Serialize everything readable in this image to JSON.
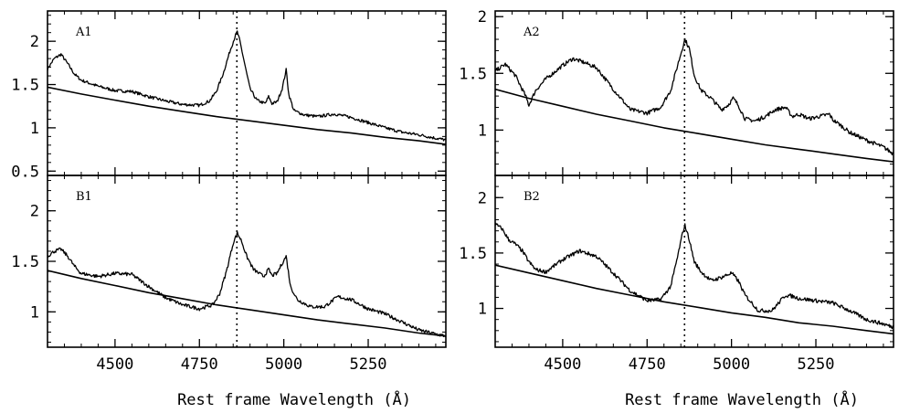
{
  "figure": {
    "xlabel": "Rest frame Wavelength (Å)",
    "marker_wavelength": 4861
  },
  "chart_data": [
    {
      "type": "line",
      "panel": "A1",
      "xlim": [
        4300,
        5480
      ],
      "ylim": [
        0.45,
        2.35
      ],
      "yticks": [
        0.5,
        1,
        1.5,
        2
      ],
      "ytick_labels": [
        "0.5",
        "1",
        "1.5",
        "2"
      ],
      "xticks": [
        4500,
        4750,
        5000,
        5250
      ],
      "xtick_labels": [
        "",
        "",
        "",
        ""
      ],
      "series": [
        {
          "role": "spectrum",
          "x": [
            4300,
            4320,
            4340,
            4360,
            4380,
            4400,
            4450,
            4500,
            4550,
            4600,
            4650,
            4700,
            4750,
            4780,
            4800,
            4820,
            4840,
            4855,
            4862,
            4870,
            4885,
            4900,
            4920,
            4945,
            4955,
            4965,
            4980,
            4995,
            5007,
            5015,
            5030,
            5060,
            5100,
            5150,
            5200,
            5250,
            5300,
            5350,
            5400,
            5450,
            5480
          ],
          "y": [
            1.68,
            1.8,
            1.85,
            1.74,
            1.62,
            1.55,
            1.48,
            1.43,
            1.42,
            1.36,
            1.31,
            1.27,
            1.26,
            1.31,
            1.42,
            1.62,
            1.88,
            2.05,
            2.11,
            2.0,
            1.72,
            1.45,
            1.32,
            1.28,
            1.36,
            1.28,
            1.3,
            1.45,
            1.67,
            1.38,
            1.2,
            1.15,
            1.13,
            1.16,
            1.12,
            1.06,
            1.0,
            0.95,
            0.92,
            0.88,
            0.86
          ]
        },
        {
          "role": "continuum",
          "x": [
            4300,
            4400,
            4500,
            4600,
            4700,
            4800,
            4900,
            5000,
            5100,
            5200,
            5300,
            5400,
            5480
          ],
          "y": [
            1.47,
            1.39,
            1.32,
            1.25,
            1.19,
            1.13,
            1.08,
            1.03,
            0.98,
            0.94,
            0.89,
            0.85,
            0.81
          ]
        }
      ]
    },
    {
      "type": "line",
      "panel": "A2",
      "xlim": [
        4300,
        5480
      ],
      "ylim": [
        0.6,
        2.05
      ],
      "yticks": [
        1,
        1.5,
        2
      ],
      "ytick_labels": [
        "1",
        "1.5",
        "2"
      ],
      "xticks": [
        4500,
        4750,
        5000,
        5250
      ],
      "xtick_labels": [
        "",
        "",
        "",
        ""
      ],
      "series": [
        {
          "role": "spectrum",
          "x": [
            4300,
            4330,
            4360,
            4390,
            4400,
            4420,
            4450,
            4500,
            4530,
            4560,
            4600,
            4650,
            4700,
            4750,
            4790,
            4820,
            4845,
            4862,
            4875,
            4890,
            4910,
            4940,
            4970,
            4990,
            5005,
            5020,
            5040,
            5070,
            5100,
            5130,
            5160,
            5180,
            5200,
            5230,
            5260,
            5290,
            5300,
            5320,
            5350,
            5400,
            5450,
            5480
          ],
          "y": [
            1.52,
            1.58,
            1.48,
            1.3,
            1.22,
            1.35,
            1.45,
            1.57,
            1.63,
            1.6,
            1.55,
            1.36,
            1.18,
            1.15,
            1.2,
            1.35,
            1.62,
            1.8,
            1.72,
            1.48,
            1.35,
            1.28,
            1.18,
            1.22,
            1.28,
            1.22,
            1.1,
            1.08,
            1.12,
            1.18,
            1.2,
            1.12,
            1.14,
            1.1,
            1.12,
            1.14,
            1.09,
            1.05,
            0.98,
            0.91,
            0.85,
            0.79
          ]
        },
        {
          "role": "continuum",
          "x": [
            4300,
            4400,
            4500,
            4600,
            4700,
            4800,
            4900,
            5000,
            5100,
            5200,
            5300,
            5400,
            5480
          ],
          "y": [
            1.36,
            1.28,
            1.21,
            1.14,
            1.08,
            1.02,
            0.97,
            0.92,
            0.87,
            0.83,
            0.79,
            0.75,
            0.72
          ]
        }
      ]
    },
    {
      "type": "line",
      "panel": "B1",
      "xlim": [
        4300,
        5480
      ],
      "ylim": [
        0.65,
        2.35
      ],
      "yticks": [
        1,
        1.5,
        2
      ],
      "ytick_labels": [
        "1",
        "1.5",
        "2"
      ],
      "xticks": [
        4500,
        4750,
        5000,
        5250
      ],
      "xtick_labels": [
        "4500",
        "4750",
        "5000",
        "5250"
      ],
      "series": [
        {
          "role": "spectrum",
          "x": [
            4300,
            4320,
            4340,
            4360,
            4380,
            4400,
            4450,
            4500,
            4550,
            4600,
            4650,
            4700,
            4750,
            4790,
            4810,
            4830,
            4850,
            4862,
            4875,
            4890,
            4910,
            4940,
            4955,
            4965,
            4980,
            4995,
            5007,
            5020,
            5040,
            5080,
            5120,
            5160,
            5200,
            5250,
            5300,
            5350,
            5400,
            5450,
            5480
          ],
          "y": [
            1.55,
            1.6,
            1.62,
            1.55,
            1.45,
            1.38,
            1.35,
            1.38,
            1.37,
            1.25,
            1.14,
            1.07,
            1.03,
            1.07,
            1.18,
            1.4,
            1.68,
            1.78,
            1.7,
            1.55,
            1.42,
            1.35,
            1.42,
            1.36,
            1.38,
            1.48,
            1.55,
            1.25,
            1.12,
            1.05,
            1.05,
            1.15,
            1.12,
            1.03,
            0.98,
            0.9,
            0.82,
            0.78,
            0.76
          ]
        },
        {
          "role": "continuum",
          "x": [
            4300,
            4400,
            4500,
            4600,
            4700,
            4800,
            4900,
            5000,
            5100,
            5200,
            5300,
            5400,
            5480
          ],
          "y": [
            1.41,
            1.33,
            1.26,
            1.19,
            1.13,
            1.07,
            1.02,
            0.97,
            0.92,
            0.88,
            0.84,
            0.79,
            0.76
          ]
        }
      ]
    },
    {
      "type": "line",
      "panel": "B2",
      "xlim": [
        4300,
        5480
      ],
      "ylim": [
        0.65,
        2.2
      ],
      "yticks": [
        1,
        1.5,
        2
      ],
      "ytick_labels": [
        "1",
        "1.5",
        "2"
      ],
      "xticks": [
        4500,
        4750,
        5000,
        5250
      ],
      "xtick_labels": [
        "4500",
        "4750",
        "5000",
        "5250"
      ],
      "series": [
        {
          "role": "spectrum",
          "x": [
            4300,
            4320,
            4340,
            4360,
            4380,
            4400,
            4420,
            4450,
            4500,
            4550,
            4600,
            4650,
            4700,
            4750,
            4790,
            4820,
            4840,
            4855,
            4862,
            4875,
            4890,
            4910,
            4940,
            4970,
            5000,
            5020,
            5040,
            5080,
            5120,
            5160,
            5180,
            5200,
            5250,
            5300,
            5350,
            5400,
            5450,
            5480
          ],
          "y": [
            1.76,
            1.72,
            1.62,
            1.58,
            1.52,
            1.42,
            1.35,
            1.33,
            1.44,
            1.52,
            1.47,
            1.32,
            1.16,
            1.07,
            1.08,
            1.2,
            1.46,
            1.68,
            1.75,
            1.62,
            1.42,
            1.33,
            1.25,
            1.28,
            1.32,
            1.25,
            1.12,
            0.98,
            0.98,
            1.12,
            1.11,
            1.09,
            1.07,
            1.05,
            0.98,
            0.9,
            0.86,
            0.83
          ]
        },
        {
          "role": "continuum",
          "x": [
            4300,
            4400,
            4500,
            4600,
            4700,
            4800,
            4900,
            5000,
            5100,
            5200,
            5300,
            5400,
            5480
          ],
          "y": [
            1.39,
            1.32,
            1.25,
            1.18,
            1.12,
            1.06,
            1.01,
            0.96,
            0.92,
            0.87,
            0.84,
            0.8,
            0.77
          ]
        }
      ]
    }
  ]
}
